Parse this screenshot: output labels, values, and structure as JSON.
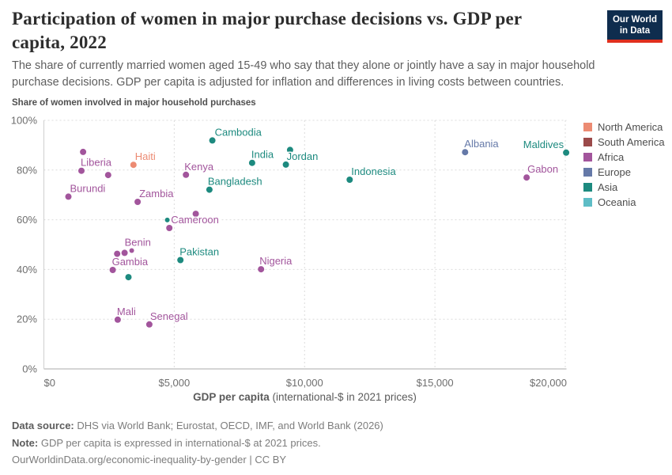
{
  "header": {
    "title_line1": "Participation of women in major purchase decisions vs. GDP per",
    "title_line2": "capita, 2022",
    "subtitle_line1": "The share of currently married women aged 15-49 who say that they alone or jointly have a say in major household",
    "subtitle_line2": "purchase decisions. GDP per capita is adjusted for inflation and differences in living costs between countries.",
    "logo_line1": "Our World",
    "logo_line2": "in Data",
    "brand": {
      "navy": "#0f2d4e",
      "red": "#e0301e"
    }
  },
  "chart_data": {
    "type": "scatter",
    "title": "Share of women involved in major household purchases",
    "xlabel": "GDP per capita",
    "xlabel_note": " (international-$ in 2021 prices)",
    "xlim": [
      0,
      20000
    ],
    "ylim": [
      0,
      100
    ],
    "grid": "dashed",
    "legend_position": "right",
    "x_ticks": [
      {
        "v": 0,
        "label": "$0"
      },
      {
        "v": 5000,
        "label": "$5,000"
      },
      {
        "v": 10000,
        "label": "$10,000"
      },
      {
        "v": 15000,
        "label": "$15,000"
      },
      {
        "v": 20000,
        "label": "$20,000"
      }
    ],
    "y_ticks": [
      {
        "v": 0,
        "label": "0%"
      },
      {
        "v": 20,
        "label": "20%"
      },
      {
        "v": 40,
        "label": "40%"
      },
      {
        "v": 60,
        "label": "60%"
      },
      {
        "v": 80,
        "label": "80%"
      },
      {
        "v": 100,
        "label": "100%"
      }
    ],
    "continent_colors": {
      "North America": "#ec8b73",
      "South America": "#9b4a4a",
      "Africa": "#a2559c",
      "Europe": "#6579a8",
      "Asia": "#1d8a7f",
      "Oceania": "#5ebdc6"
    },
    "legend": [
      "North America",
      "South America",
      "Africa",
      "Europe",
      "Asia",
      "Oceania"
    ],
    "points": [
      {
        "name": "Burundi",
        "gdp": 940,
        "share": 69.3,
        "continent": "Africa",
        "dx": 2
      },
      {
        "name": "Liberia",
        "gdp": 1440,
        "share": 79.7,
        "continent": "Africa"
      },
      {
        "name": "",
        "gdp": 1505,
        "share": 87.3,
        "continent": "Africa"
      },
      {
        "name": "",
        "gdp": 2466,
        "share": 78.0,
        "continent": "Africa"
      },
      {
        "name": "Haiti",
        "gdp": 3437,
        "share": 82.1,
        "continent": "North America",
        "dx": 2
      },
      {
        "name": "Zambia",
        "gdp": 3598,
        "share": 67.2,
        "continent": "Africa",
        "dx": 2
      },
      {
        "name": "Kenya",
        "gdp": 5449,
        "share": 78.1,
        "continent": "Africa",
        "dx": -2
      },
      {
        "name": "Cambodia",
        "gdp": 6462,
        "share": 91.9,
        "continent": "Asia",
        "dx": 3
      },
      {
        "name": "Bangladesh",
        "gdp": 6350,
        "share": 72.1,
        "continent": "Asia",
        "dx": -2
      },
      {
        "name": "",
        "gdp": 5826,
        "share": 62.4,
        "continent": "Africa"
      },
      {
        "name": "",
        "gdp": 4733,
        "share": 59.9,
        "continent": "Asia",
        "r": 3
      },
      {
        "name": "Cameroon",
        "gdp": 4812,
        "share": 56.7,
        "continent": "Africa",
        "dx": 2
      },
      {
        "name": "",
        "gdp": 2810,
        "share": 46.3,
        "continent": "Africa"
      },
      {
        "name": "",
        "gdp": 3095,
        "share": 46.7,
        "continent": "Africa"
      },
      {
        "name": "Benin",
        "gdp": 3368,
        "share": 47.6,
        "continent": "Africa",
        "dx": -9,
        "r": 3
      },
      {
        "name": "Gambia",
        "gdp": 2640,
        "share": 39.8,
        "continent": "Africa"
      },
      {
        "name": "",
        "gdp": 3246,
        "share": 36.9,
        "continent": "Asia"
      },
      {
        "name": "Pakistan",
        "gdp": 5237,
        "share": 43.8,
        "continent": "Asia"
      },
      {
        "name": "Nigeria",
        "gdp": 8331,
        "share": 40.1,
        "continent": "Africa",
        "dx": -2
      },
      {
        "name": "Mali",
        "gdp": 2831,
        "share": 19.8,
        "continent": "Africa"
      },
      {
        "name": "Senegal",
        "gdp": 4045,
        "share": 17.9,
        "continent": "Africa",
        "dx": 1
      },
      {
        "name": "India",
        "gdp": 7988,
        "share": 82.9,
        "continent": "Asia"
      },
      {
        "name": "Jordan",
        "gdp": 9284,
        "share": 82.2,
        "continent": "Asia",
        "dx": 1
      },
      {
        "name": "",
        "gdp": 9444,
        "share": 88.1,
        "continent": "Asia"
      },
      {
        "name": "Indonesia",
        "gdp": 11730,
        "share": 76.1,
        "continent": "Asia",
        "dx": 2
      },
      {
        "name": "Albania",
        "gdp": 16159,
        "share": 87.2,
        "continent": "Europe"
      },
      {
        "name": "Maldives",
        "gdp": 20033,
        "share": 87.0,
        "continent": "Asia",
        "anchor": "end",
        "dx": -3
      },
      {
        "name": "Gabon",
        "gdp": 18516,
        "share": 77.0,
        "continent": "Africa",
        "dx": 1
      }
    ]
  },
  "footer": {
    "source_label": "Data source:",
    "source_text": " DHS via World Bank; Eurostat, OECD, IMF, and World Bank (2026)",
    "note_label": "Note:",
    "note_text": " GDP per capita is expressed in international-$ at 2021 prices.",
    "link": "OurWorldinData.org/economic-inequality-by-gender",
    "license": " | CC BY"
  }
}
